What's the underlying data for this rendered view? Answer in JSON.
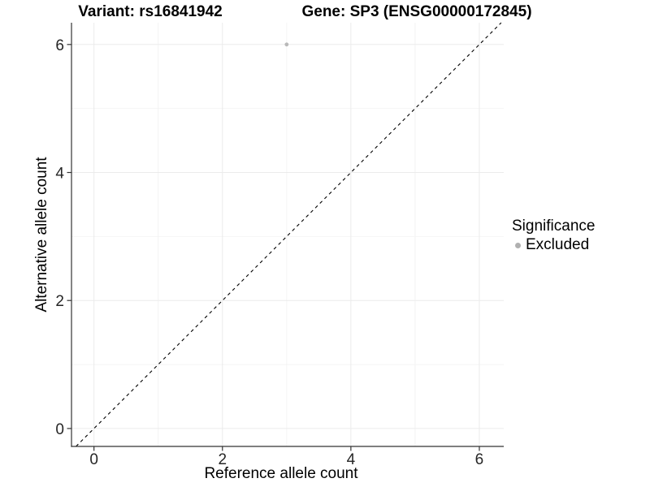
{
  "page": {
    "title_left": "Variant: rs16841942",
    "title_right": "Gene: SP3 (ENSG00000172845)"
  },
  "chart_data": {
    "type": "scatter",
    "title_left": "Variant: rs16841942",
    "title_right": "Gene: SP3 (ENSG00000172845)",
    "xlabel": "Reference allele count",
    "ylabel": "Alternative allele count",
    "xlim": [
      -0.35,
      6.38
    ],
    "ylim": [
      -0.28,
      6.34
    ],
    "xticks": [
      0,
      2,
      4,
      6
    ],
    "yticks": [
      0,
      2,
      4,
      6
    ],
    "xtick_labels": [
      "0",
      "2",
      "4",
      "6"
    ],
    "ytick_labels": [
      "0",
      "2",
      "4",
      "6"
    ],
    "minor_xticks": [
      1,
      3,
      5
    ],
    "minor_yticks": [
      1,
      3,
      5
    ],
    "grid": true,
    "series": [
      {
        "name": "Excluded",
        "color": "#b9b9b9",
        "point_radius": 2.4,
        "points": [
          {
            "x": 3,
            "y": 6
          }
        ]
      }
    ],
    "reference_line": {
      "kind": "identity",
      "slope": 1,
      "intercept": 0,
      "style": "dashed",
      "color": "#000000"
    },
    "legend": {
      "title": "Significance",
      "position": "right",
      "items": [
        {
          "label": "Excluded",
          "color": "#b0b0b0"
        }
      ]
    },
    "colors": {
      "panel_background": "#ffffff",
      "grid_major": "#ebebeb",
      "grid_minor": "#f4f4f4",
      "axis_line": "#333333",
      "tick_mark": "#333333",
      "tick_text": "#262626"
    }
  }
}
